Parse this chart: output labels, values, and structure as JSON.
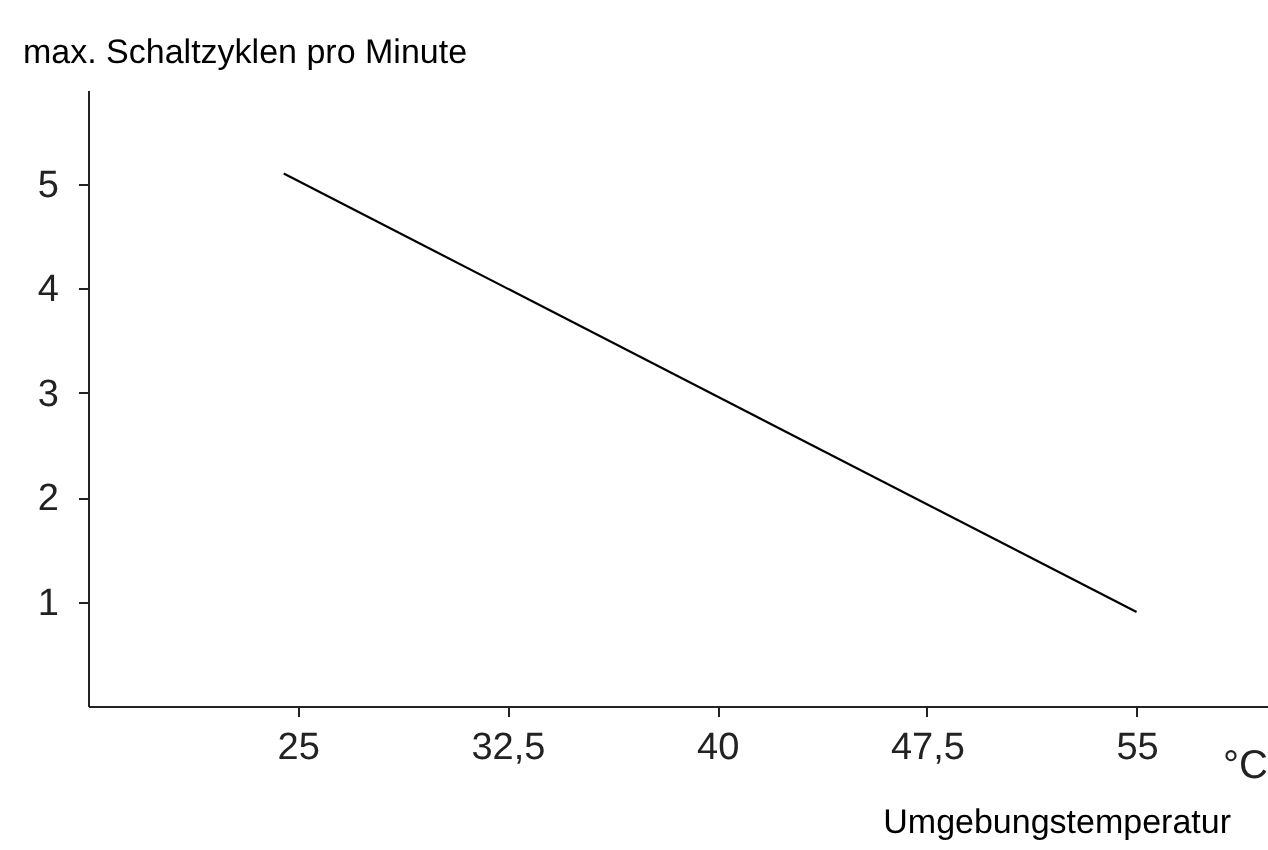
{
  "chart_data": {
    "type": "line",
    "ylabel": "max. Schaltzyklen pro Minute",
    "xlabel": "Umgebungstemperatur",
    "annotations": [
      "°C"
    ],
    "x": [
      24.5,
      55
    ],
    "series": [
      {
        "color": "#000000",
        "values": [
          5.1,
          0.9
        ]
      }
    ],
    "xlim": [
      17.5,
      59.7
    ],
    "ylim": [
      0,
      5.9
    ],
    "xticks": [
      25,
      {
        "value": 32.5,
        "label": "32,5"
      },
      40,
      {
        "value": 47.5,
        "label": "47,5"
      },
      55
    ],
    "yticks": [
      1,
      2,
      3,
      4,
      5
    ],
    "grid": false,
    "legend": false,
    "marker": "none",
    "line_style": "solid"
  }
}
